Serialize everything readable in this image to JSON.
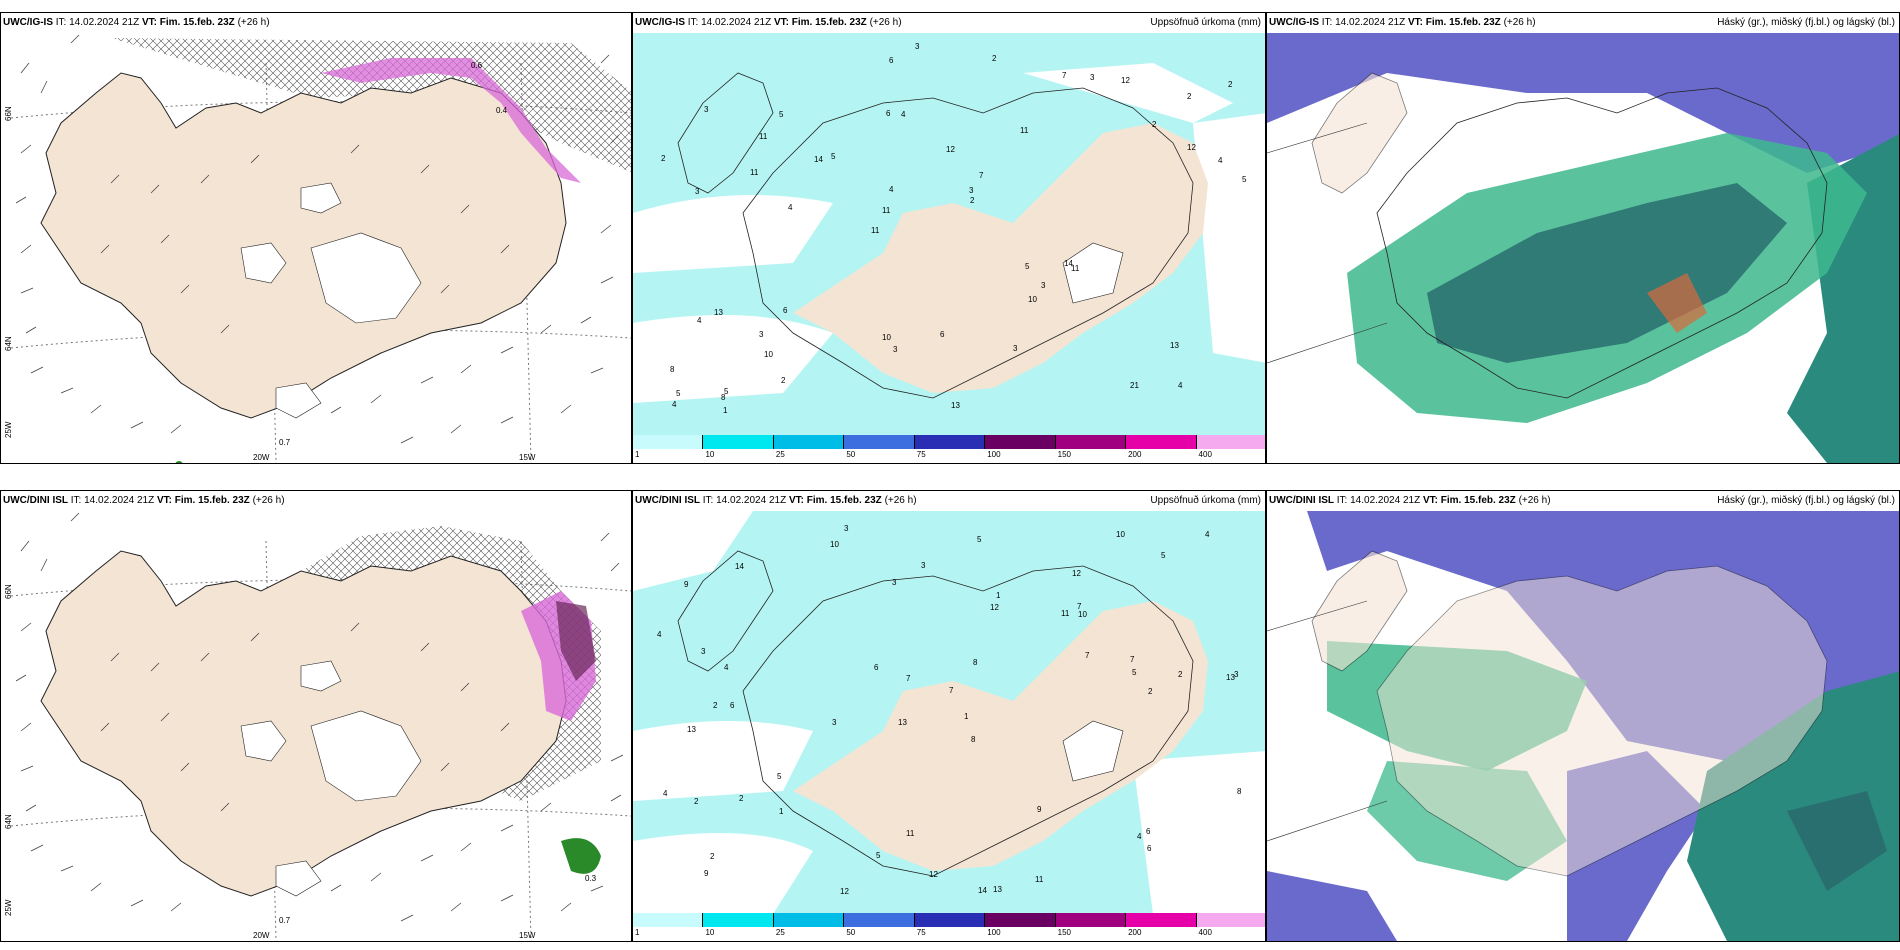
{
  "panels": [
    {
      "id": "p1",
      "model": "UWC/IG-IS",
      "it_label": "IT:",
      "it": "14.02.2024 21Z",
      "vt_label": "VT:",
      "vt": "Fim. 15.feb. 23Z",
      "lead": "(+26 h)",
      "right": ""
    },
    {
      "id": "p2",
      "model": "UWC/IG-IS",
      "it_label": "IT:",
      "it": "14.02.2024 21Z",
      "vt_label": "VT:",
      "vt": "Fim. 15.feb. 23Z",
      "lead": "(+26 h)",
      "right": "Uppsöfnuð úrkoma (mm)"
    },
    {
      "id": "p3",
      "model": "UWC/IG-IS",
      "it_label": "IT:",
      "it": "14.02.2024 21Z",
      "vt_label": "VT:",
      "vt": "Fim. 15.feb. 23Z",
      "lead": "(+26 h)",
      "right": "Háský (gr.), miðský (fj.bl.) og lágský (bl.)"
    },
    {
      "id": "p4",
      "model": "UWC/DINI ISL",
      "it_label": "IT:",
      "it": "14.02.2024 21Z",
      "vt_label": "VT:",
      "vt": "Fim. 15.feb. 23Z",
      "lead": "(+26 h)",
      "right": ""
    },
    {
      "id": "p5",
      "model": "UWC/DINI ISL",
      "it_label": "IT:",
      "it": "14.02.2024 21Z",
      "vt_label": "VT:",
      "vt": "Fim. 15.feb. 23Z",
      "lead": "(+26 h)",
      "right": "Uppsöfnuð úrkoma (mm)"
    },
    {
      "id": "p6",
      "model": "UWC/DINI ISL",
      "it_label": "IT:",
      "it": "14.02.2024 21Z",
      "vt_label": "VT:",
      "vt": "Fim. 15.feb. 23Z",
      "lead": "(+26 h)",
      "right": "Háský (gr.), miðský (fj.bl.) og lágský (bl.)"
    }
  ],
  "axis_ticks": {
    "lon1": "20W",
    "lon2": "15W",
    "lat1": "66N",
    "lat2": "64N",
    "lon_left": "25W"
  },
  "wind_labels": {
    "top_0_7": "0.7",
    "bot_0_7": "0.7",
    "bot_0_3": "0.3",
    "top_0_6": "0.6",
    "top_0_4": "0.4"
  },
  "colorbar": {
    "labels": [
      "1",
      "10",
      "25",
      "50",
      "75",
      "100",
      "150",
      "200",
      "400"
    ],
    "colors": [
      "#c8fbfb",
      "#00e8ef",
      "#00bde8",
      "#3d6ee0",
      "#2a2eb5",
      "#6a0061",
      "#a0007f",
      "#e600a8",
      "#f5aaf0"
    ]
  },
  "precip_numbers_top": [
    "4",
    "3",
    "2",
    "11",
    "11",
    "5",
    "6",
    "12",
    "13",
    "5",
    "8",
    "10",
    "4",
    "7",
    "11",
    "3",
    "6",
    "5",
    "5",
    "12",
    "11",
    "10",
    "4",
    "5",
    "7",
    "6",
    "21",
    "13",
    "14",
    "13",
    "14",
    "11",
    "10",
    "2",
    "4",
    "3",
    "5",
    "3",
    "2",
    "4",
    "2",
    "2",
    "3",
    "3",
    "3",
    "1",
    "4",
    "6",
    "12",
    "3",
    "4",
    "2",
    "11",
    "3",
    "8",
    "2"
  ],
  "precip_numbers_bot": [
    "3",
    "12",
    "13",
    "13",
    "8",
    "6",
    "9",
    "11",
    "13",
    "12",
    "7",
    "9",
    "10",
    "3",
    "14",
    "13",
    "11",
    "10",
    "7",
    "5",
    "4",
    "2",
    "3",
    "2",
    "4",
    "3",
    "7",
    "5",
    "6",
    "2",
    "4",
    "1",
    "2",
    "6",
    "9",
    "8",
    "7",
    "5",
    "4",
    "3",
    "2",
    "12",
    "11",
    "14",
    "12",
    "10",
    "6",
    "7",
    "4",
    "1",
    "3",
    "2",
    "8",
    "5",
    "5",
    "1"
  ],
  "colors": {
    "land": "#f4e4d4",
    "precip_light": "#b4f5f3",
    "cloud_high": "#6a6acc",
    "cloud_mid": "#3db98d",
    "cloud_low": "#2a8a7e",
    "wind_pink": "#d86ad8"
  }
}
